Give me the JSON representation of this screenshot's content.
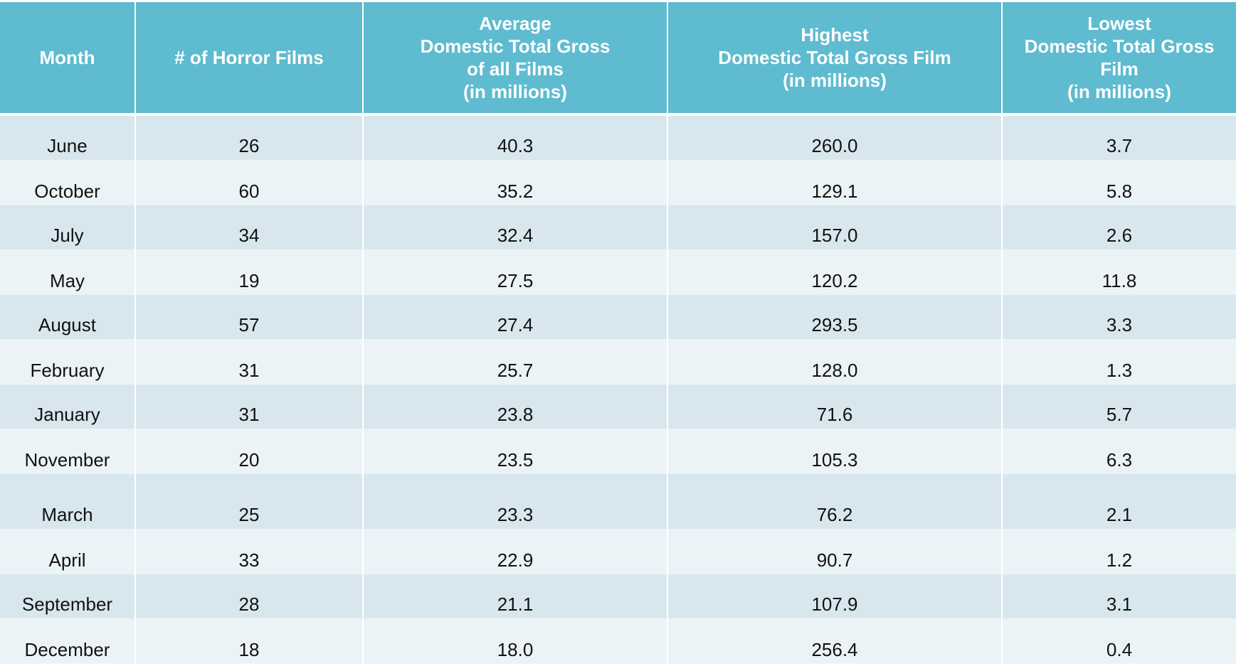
{
  "colors": {
    "header_bg": "#5fbbd0",
    "header_text": "#ffffff",
    "row_dark": "#d8e7ee",
    "row_light": "#ecf3f7"
  },
  "chart_data": {
    "type": "table",
    "columns": [
      [
        "Month"
      ],
      [
        "# of Horror Films"
      ],
      [
        "Average",
        "Domestic Total Gross",
        "of all Films",
        "(in millions)"
      ],
      [
        "Highest",
        "Domestic Total Gross Film",
        "(in millions)"
      ],
      [
        "Lowest",
        "Domestic Total Gross",
        "Film",
        "(in millions)"
      ]
    ],
    "rows": [
      [
        "June",
        "26",
        "40.3",
        "260.0",
        "3.7"
      ],
      [
        "October",
        "60",
        "35.2",
        "129.1",
        "5.8"
      ],
      [
        "July",
        "34",
        "32.4",
        "157.0",
        "2.6"
      ],
      [
        "May",
        "19",
        "27.5",
        "120.2",
        "11.8"
      ],
      [
        "August",
        "57",
        "27.4",
        "293.5",
        "3.3"
      ],
      [
        "February",
        "31",
        "25.7",
        "128.0",
        "1.3"
      ],
      [
        "January",
        "31",
        "23.8",
        "71.6",
        "5.7"
      ],
      [
        "November",
        "20",
        "23.5",
        "105.3",
        "6.3"
      ],
      [
        "March",
        "25",
        "23.3",
        "76.2",
        "2.1"
      ],
      [
        "April",
        "33",
        "22.9",
        "90.7",
        "1.2"
      ],
      [
        "September",
        "28",
        "21.1",
        "107.9",
        "3.1"
      ],
      [
        "December",
        "18",
        "18.0",
        "256.4",
        "0.4"
      ]
    ]
  }
}
